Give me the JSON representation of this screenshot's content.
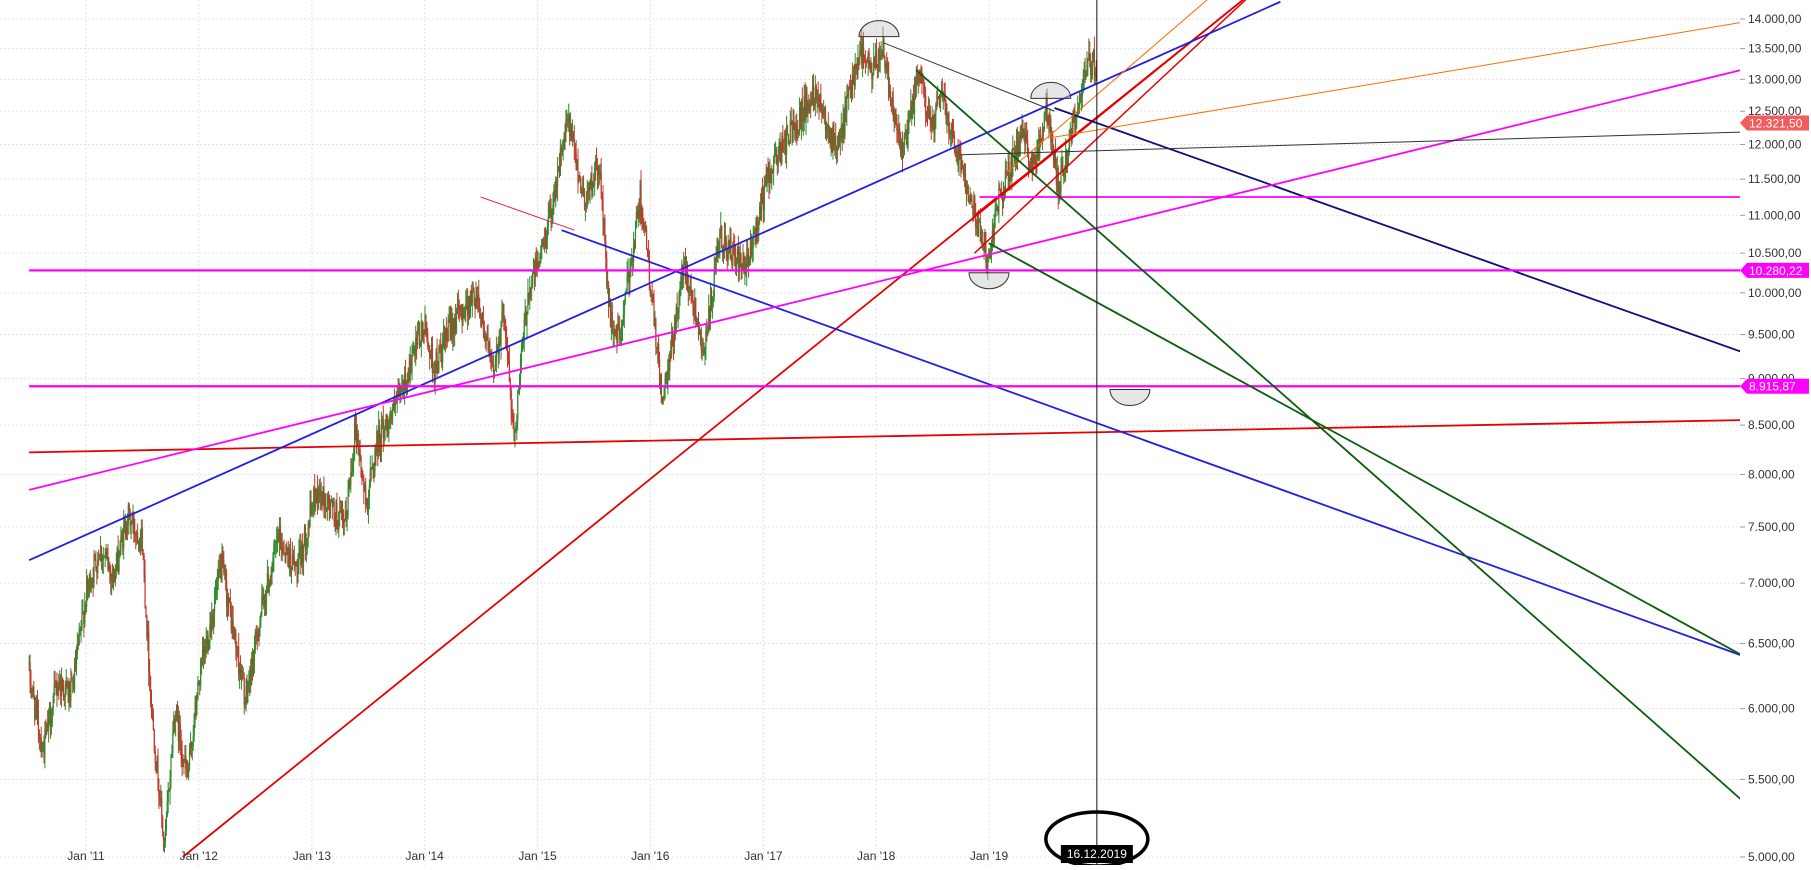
{
  "chart_data": {
    "type": "candlestick",
    "title": "",
    "xlabel": "",
    "ylabel": "",
    "scale": "log",
    "ylim": [
      5000,
      14100
    ],
    "xlim": [
      "2010-07-01",
      "2025-12-31"
    ],
    "grid": true,
    "x_ticks": [
      {
        "label": "Jan '11",
        "date": "2011-01-01"
      },
      {
        "label": "Jan '12",
        "date": "2012-01-01"
      },
      {
        "label": "Jan '13",
        "date": "2013-01-01"
      },
      {
        "label": "Jan '14",
        "date": "2014-01-01"
      },
      {
        "label": "Jan '15",
        "date": "2015-01-01"
      },
      {
        "label": "Jan '16",
        "date": "2016-01-01"
      },
      {
        "label": "Jan '17",
        "date": "2017-01-01"
      },
      {
        "label": "Jan '18",
        "date": "2018-01-01"
      },
      {
        "label": "Jan '19",
        "date": "2019-01-01"
      }
    ],
    "y_ticks": [
      {
        "label": "5.000,00",
        "value": 5000
      },
      {
        "label": "5.500,00",
        "value": 5500
      },
      {
        "label": "6.000,00",
        "value": 6000
      },
      {
        "label": "6.500,00",
        "value": 6500
      },
      {
        "label": "7.000,00",
        "value": 7000
      },
      {
        "label": "7.500,00",
        "value": 7500
      },
      {
        "label": "8.000,00",
        "value": 8000
      },
      {
        "label": "8.500,00",
        "value": 8500
      },
      {
        "label": "9.000,00",
        "value": 9000
      },
      {
        "label": "9.500,00",
        "value": 9500
      },
      {
        "label": "10.000,00",
        "value": 10000
      },
      {
        "label": "10.500,00",
        "value": 10500
      },
      {
        "label": "11.000,00",
        "value": 11000
      },
      {
        "label": "11.500,00",
        "value": 11500
      },
      {
        "label": "12.000,00",
        "value": 12000
      },
      {
        "label": "12.500,00",
        "value": 12500
      },
      {
        "label": "13.000,00",
        "value": 13000
      },
      {
        "label": "13.500,00",
        "value": 13500
      },
      {
        "label": "14.000,00",
        "value": 14000
      }
    ],
    "price_path": [
      [
        "2010-07-01",
        6250
      ],
      [
        "2010-08-15",
        5700
      ],
      [
        "2010-10-01",
        6200
      ],
      [
        "2010-11-15",
        6100
      ],
      [
        "2011-01-01",
        6900
      ],
      [
        "2011-02-15",
        7300
      ],
      [
        "2011-04-01",
        7050
      ],
      [
        "2011-05-15",
        7600
      ],
      [
        "2011-07-01",
        7400
      ],
      [
        "2011-08-01",
        6000
      ],
      [
        "2011-09-12",
        5050
      ],
      [
        "2011-10-15",
        6000
      ],
      [
        "2011-11-25",
        5500
      ],
      [
        "2012-01-01",
        6200
      ],
      [
        "2012-03-15",
        7150
      ],
      [
        "2012-06-01",
        6050
      ],
      [
        "2012-07-20",
        6750
      ],
      [
        "2012-09-15",
        7400
      ],
      [
        "2012-11-15",
        7100
      ],
      [
        "2013-01-15",
        7850
      ],
      [
        "2013-04-18",
        7500
      ],
      [
        "2013-05-22",
        8500
      ],
      [
        "2013-06-25",
        7700
      ],
      [
        "2013-08-01",
        8350
      ],
      [
        "2013-10-01",
        8700
      ],
      [
        "2013-12-31",
        9600
      ],
      [
        "2014-02-01",
        9100
      ],
      [
        "2014-04-01",
        9650
      ],
      [
        "2014-06-20",
        10000
      ],
      [
        "2014-08-08",
        9050
      ],
      [
        "2014-09-15",
        9800
      ],
      [
        "2014-10-16",
        8350
      ],
      [
        "2014-12-01",
        10000
      ],
      [
        "2015-01-20",
        10600
      ],
      [
        "2015-04-10",
        12350
      ],
      [
        "2015-06-01",
        11200
      ],
      [
        "2015-07-20",
        11700
      ],
      [
        "2015-08-24",
        9650
      ],
      [
        "2015-09-24",
        9450
      ],
      [
        "2015-12-01",
        11300
      ],
      [
        "2016-01-20",
        9400
      ],
      [
        "2016-02-11",
        8700
      ],
      [
        "2016-04-20",
        10400
      ],
      [
        "2016-06-24",
        9300
      ],
      [
        "2016-08-15",
        10700
      ],
      [
        "2016-11-04",
        10250
      ],
      [
        "2017-01-20",
        11600
      ],
      [
        "2017-03-20",
        12100
      ],
      [
        "2017-06-20",
        12850
      ],
      [
        "2017-08-29",
        11900
      ],
      [
        "2017-11-07",
        13500
      ],
      [
        "2017-12-20",
        13100
      ],
      [
        "2018-01-23",
        13550
      ],
      [
        "2018-03-26",
        11800
      ],
      [
        "2018-05-20",
        13100
      ],
      [
        "2018-07-01",
        12200
      ],
      [
        "2018-07-30",
        12800
      ],
      [
        "2018-09-15",
        12000
      ],
      [
        "2018-11-01",
        11300
      ],
      [
        "2018-12-27",
        10400
      ],
      [
        "2019-02-01",
        11200
      ],
      [
        "2019-04-15",
        12100
      ],
      [
        "2019-06-01",
        11700
      ],
      [
        "2019-07-04",
        12600
      ],
      [
        "2019-08-15",
        11400
      ],
      [
        "2019-10-15",
        12600
      ],
      [
        "2019-11-15",
        13200
      ],
      [
        "2019-12-16",
        13300
      ]
    ],
    "trendlines": [
      {
        "color": "#e60000",
        "width": 1.8,
        "from": [
          "2010-07-01",
          8220
        ],
        "to": [
          "2025-12-31",
          8560
        ]
      },
      {
        "color": "#e60000",
        "width": 1.8,
        "from": [
          "2011-11-10",
          5000
        ],
        "to": [
          "2021-06-01",
          14600
        ]
      },
      {
        "color": "#e60000",
        "width": 1.5,
        "from": [
          "2018-11-15",
          10500
        ],
        "to": [
          "2021-06-01",
          14600
        ]
      },
      {
        "color": "#e60000",
        "width": 1.5,
        "from": [
          "2018-11-15",
          11000
        ],
        "to": [
          "2021-06-01",
          14600
        ]
      },
      {
        "color": "#1f1fe6",
        "width": 1.8,
        "from": [
          "2010-07-01",
          7200
        ],
        "to": [
          "2021-08-01",
          14300
        ]
      },
      {
        "color": "#1f1fe6",
        "width": 1.8,
        "from": [
          "2015-03-20",
          10800
        ],
        "to": [
          "2025-12-31",
          6300
        ]
      },
      {
        "color": "#0d0d7a",
        "width": 1.8,
        "from": [
          "2019-08-01",
          12550
        ],
        "to": [
          "2025-12-31",
          9150
        ]
      },
      {
        "color": "#ff00ff",
        "width": 1.8,
        "from": [
          "2010-07-01",
          7850
        ],
        "to": [
          "2025-12-31",
          13300
        ]
      },
      {
        "color": "#ff00ff",
        "width": 1.8,
        "from": [
          "2018-12-01",
          11250
        ],
        "to": [
          "2025-12-31",
          11250
        ]
      },
      {
        "color": "#ff00ff",
        "width": 2.2,
        "from": [
          "2010-07-01",
          10280.22
        ],
        "to": [
          "2025-12-31",
          10280.22
        ]
      },
      {
        "color": "#ff00ff",
        "width": 2.2,
        "from": [
          "2010-07-01",
          8915.87
        ],
        "to": [
          "2025-12-31",
          8915.87
        ]
      },
      {
        "color": "#e8206c",
        "width": 1.0,
        "from": [
          "2014-07-01",
          11250
        ],
        "to": [
          "2015-05-01",
          10800
        ]
      },
      {
        "color": "#ff6a00",
        "width": 1.0,
        "from": [
          "2019-03-01",
          11600
        ],
        "to": [
          "2021-02-01",
          14600
        ]
      },
      {
        "color": "#ff6a00",
        "width": 1.0,
        "from": [
          "2019-07-20",
          12100
        ],
        "to": [
          "2025-12-31",
          14050
        ]
      },
      {
        "color": "#0e5c0e",
        "width": 1.8,
        "from": [
          "2018-05-10",
          13150
        ],
        "to": [
          "2025-12-31",
          5150
        ]
      },
      {
        "color": "#0e5c0e",
        "width": 1.8,
        "from": [
          "2018-12-31",
          10630
        ],
        "to": [
          "2025-12-31",
          6250
        ]
      },
      {
        "color": "#333333",
        "width": 1.0,
        "from": [
          "2018-01-23",
          13600
        ],
        "to": [
          "2019-08-01",
          12500
        ]
      },
      {
        "color": "#333333",
        "width": 1.0,
        "from": [
          "2018-10-01",
          11850
        ],
        "to": [
          "2025-12-31",
          12200
        ]
      }
    ],
    "arcs": [
      {
        "date": "2018-01-10",
        "value": 13700,
        "orientation": "up"
      },
      {
        "date": "2019-07-20",
        "value": 12700,
        "orientation": "up"
      },
      {
        "date": "2019-01-01",
        "value": 10250,
        "orientation": "down"
      },
      {
        "date": "2020-04-01",
        "value": 8880,
        "orientation": "down"
      }
    ],
    "price_labels": [
      {
        "text": "12.321,50",
        "value": 12321.5,
        "color": "#f25c5c"
      },
      {
        "text": "10.280,22",
        "value": 10280.22,
        "color": "#ff00ff"
      },
      {
        "text": "8.915,87",
        "value": 8915.87,
        "color": "#ff00ff"
      }
    ],
    "crosshair": {
      "date": "2019-12-16",
      "label": "16.12.2019"
    },
    "colors": {
      "up": "#2e8b2e",
      "down": "#c0392b"
    }
  }
}
